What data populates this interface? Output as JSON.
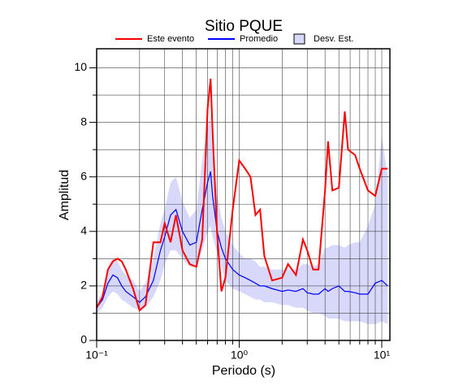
{
  "chart_data": {
    "type": "line",
    "title": "Sitio PQUE",
    "xlabel": "Periodo (s)",
    "ylabel": "Amplitud",
    "xscale": "log",
    "grid": true,
    "xlim": [
      0.1,
      11.4
    ],
    "ylim": [
      0,
      10.7
    ],
    "xticks": [
      {
        "value": 0.1,
        "label": "10⁻¹"
      },
      {
        "value": 1,
        "label": "10⁰"
      },
      {
        "value": 10,
        "label": "10¹"
      }
    ],
    "xminor": [
      0.2,
      0.3,
      0.4,
      0.5,
      0.6,
      0.7,
      0.8,
      0.9,
      2,
      3,
      4,
      5,
      6,
      7,
      8,
      9
    ],
    "yticks": [
      0,
      2,
      4,
      6,
      8,
      10
    ],
    "yminor": [
      1,
      3,
      5,
      7,
      9
    ],
    "x": [
      0.1,
      0.11,
      0.12,
      0.13,
      0.14,
      0.15,
      0.16,
      0.18,
      0.2,
      0.22,
      0.25,
      0.28,
      0.3,
      0.33,
      0.36,
      0.4,
      0.45,
      0.5,
      0.55,
      0.6,
      0.63,
      0.65,
      0.7,
      0.75,
      0.8,
      0.9,
      1.0,
      1.1,
      1.2,
      1.3,
      1.4,
      1.5,
      1.7,
      2.0,
      2.2,
      2.5,
      2.8,
      3.0,
      3.3,
      3.6,
      4.0,
      4.2,
      4.5,
      5.0,
      5.5,
      5.8,
      6.5,
      7.0,
      8.0,
      9.0,
      10,
      11
    ],
    "series": [
      {
        "name": "Este evento",
        "color": "#ff0000",
        "values": [
          1.2,
          1.6,
          2.6,
          2.9,
          3.0,
          2.9,
          2.6,
          1.9,
          1.1,
          1.3,
          3.6,
          3.6,
          4.3,
          3.6,
          4.6,
          3.3,
          2.8,
          2.7,
          3.7,
          8.5,
          9.6,
          7.7,
          3.9,
          1.8,
          2.3,
          4.8,
          6.6,
          6.3,
          6.0,
          4.6,
          4.8,
          3.1,
          2.2,
          2.3,
          2.8,
          2.4,
          3.7,
          3.3,
          2.6,
          2.6,
          5.5,
          7.3,
          5.5,
          5.6,
          8.4,
          7.0,
          6.8,
          6.3,
          5.5,
          5.3,
          6.3,
          6.3
        ]
      },
      {
        "name": "Promedio",
        "color": "#0000ff",
        "values": [
          1.2,
          1.5,
          2.1,
          2.4,
          2.3,
          2.0,
          1.8,
          1.6,
          1.4,
          1.6,
          2.2,
          3.3,
          3.8,
          4.6,
          4.8,
          4.0,
          3.5,
          3.6,
          4.8,
          5.8,
          6.2,
          5.3,
          4.0,
          3.4,
          3.0,
          2.6,
          2.4,
          2.3,
          2.2,
          2.1,
          2.0,
          2.0,
          1.9,
          1.8,
          1.85,
          1.8,
          1.9,
          1.75,
          1.7,
          1.7,
          1.9,
          1.8,
          1.9,
          2.0,
          1.8,
          1.8,
          1.75,
          1.7,
          1.7,
          2.1,
          2.2,
          2.0
        ]
      },
      {
        "name": "Desv. Est.",
        "color": "#d8d8fa",
        "upper": [
          1.4,
          1.8,
          2.7,
          3.0,
          2.9,
          2.6,
          2.4,
          2.2,
          1.8,
          2.1,
          3.0,
          4.3,
          4.8,
          5.8,
          6.0,
          5.1,
          4.5,
          4.8,
          6.6,
          7.8,
          8.3,
          7.2,
          5.4,
          4.5,
          4.0,
          3.5,
          3.2,
          3.0,
          3.0,
          2.9,
          2.7,
          2.7,
          2.6,
          2.6,
          2.6,
          2.6,
          2.8,
          2.8,
          2.7,
          2.8,
          3.4,
          3.4,
          3.5,
          3.5,
          3.4,
          3.5,
          3.6,
          3.6,
          4.2,
          5.0,
          7.5,
          6.0
        ],
        "lower": [
          1.0,
          1.2,
          1.6,
          1.8,
          1.7,
          1.5,
          1.4,
          1.2,
          1.1,
          1.2,
          1.6,
          2.2,
          2.8,
          3.3,
          3.3,
          3.0,
          2.7,
          2.7,
          3.3,
          4.0,
          4.2,
          3.8,
          3.2,
          2.7,
          2.2,
          1.9,
          1.8,
          1.7,
          1.6,
          1.5,
          1.5,
          1.4,
          1.4,
          1.3,
          1.3,
          1.2,
          1.2,
          1.1,
          1.0,
          1.0,
          0.9,
          0.8,
          0.8,
          0.8,
          0.7,
          0.7,
          0.7,
          0.7,
          0.6,
          0.6,
          0.7,
          0.6
        ]
      }
    ]
  }
}
